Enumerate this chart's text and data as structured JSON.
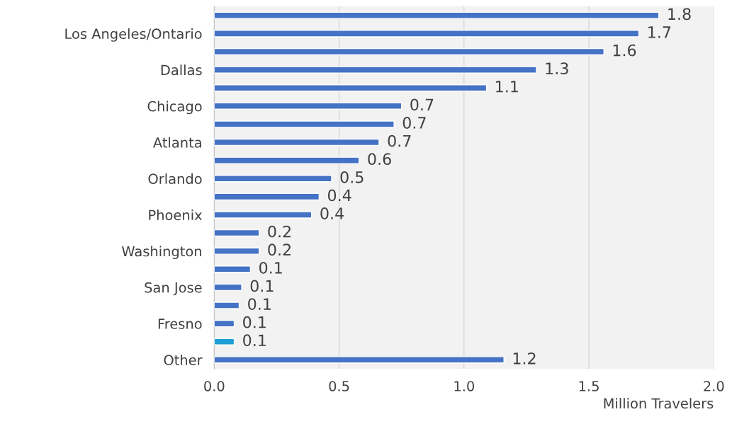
{
  "chart_data": {
    "type": "bar",
    "orientation": "horizontal",
    "xlabel": "Million Travelers",
    "categories": [
      null,
      "Los Angeles/Ontario",
      null,
      "Dallas",
      null,
      "Chicago",
      null,
      "Atlanta",
      null,
      "Orlando",
      null,
      "Phoenix",
      null,
      "Washington",
      null,
      "San Jose",
      null,
      "Fresno",
      null,
      "Other"
    ],
    "values": [
      1.78,
      1.7,
      1.56,
      1.29,
      1.09,
      0.75,
      0.72,
      0.66,
      0.58,
      0.47,
      0.42,
      0.39,
      0.18,
      0.18,
      0.145,
      0.11,
      0.1,
      0.08,
      0.08,
      1.16
    ],
    "colors": [
      "#4472c4",
      "#4472c4",
      "#4472c4",
      "#4472c4",
      "#4472c4",
      "#4472c4",
      "#4472c4",
      "#4472c4",
      "#4472c4",
      "#4472c4",
      "#4472c4",
      "#4472c4",
      "#4472c4",
      "#4472c4",
      "#4472c4",
      "#4472c4",
      "#4472c4",
      "#4472c4",
      "#1f9fd5",
      "#4472c4"
    ],
    "value_labels": [
      "1.8",
      "1.7",
      "1.6",
      "1.3",
      "1.1",
      "0.7",
      "0.7",
      "0.7",
      "0.6",
      "0.5",
      "0.4",
      "0.4",
      "0.2",
      "0.2",
      "0.1",
      "0.1",
      "0.1",
      "0.1",
      "0.1",
      "1.2"
    ],
    "xlim": [
      0,
      2.0
    ],
    "xticks": [
      {
        "value": 0,
        "label": "0.0"
      },
      {
        "value": 0.5,
        "label": "0.5"
      },
      {
        "value": 1.0,
        "label": "1.0"
      },
      {
        "value": 1.5,
        "label": "1.5"
      },
      {
        "value": 2.0,
        "label": "2.0"
      }
    ],
    "grid": "x"
  }
}
